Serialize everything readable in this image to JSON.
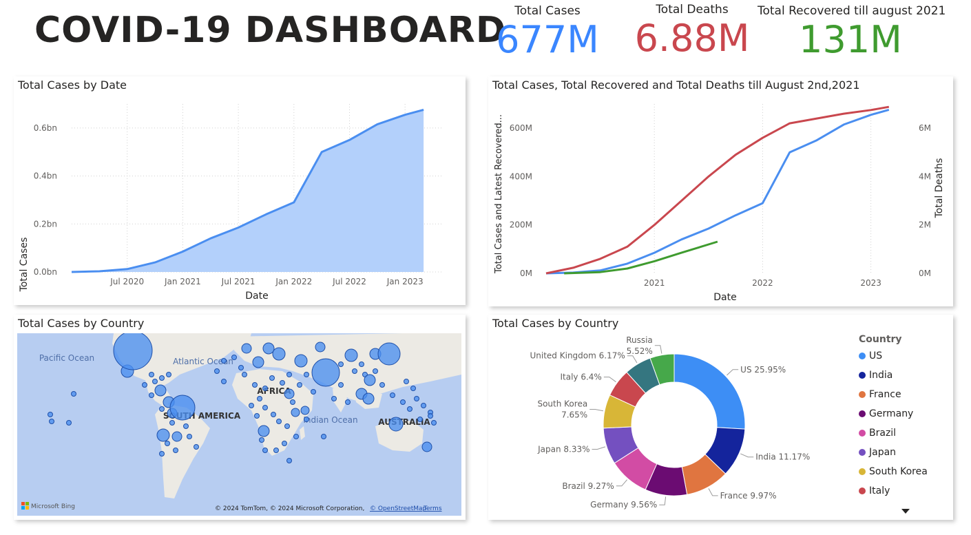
{
  "header": {
    "title": "COVID-19 DASHBOARD"
  },
  "kpis": [
    {
      "label": "Total Cases",
      "value": "677M",
      "color": "#3a86ff"
    },
    {
      "label": "Total Deaths",
      "value": "6.88M",
      "color": "#c9474e"
    },
    {
      "label": "Total Recovered till august 2021",
      "value": "131M",
      "color": "#3f9b2f"
    }
  ],
  "chart_data": [
    {
      "type": "area",
      "title": "Total Cases by Date",
      "xlabel": "Date",
      "ylabel": "Total Cases",
      "ytick_labels": [
        "0.0bn",
        "0.2bn",
        "0.4bn",
        "0.6bn"
      ],
      "xtick_labels": [
        "Jul 2020",
        "Jan 2021",
        "Jul 2021",
        "Jan 2022",
        "Jul 2022",
        "Jan 2023"
      ],
      "ylim": [
        0,
        0.7
      ],
      "color": "#4a8ef0",
      "series": [
        {
          "x": [
            "2020-01",
            "2020-04",
            "2020-07",
            "2020-10",
            "2021-01",
            "2021-04",
            "2021-07",
            "2021-10",
            "2022-01",
            "2022-04",
            "2022-07",
            "2022-10",
            "2023-01",
            "2023-03"
          ],
          "values": [
            0.0,
            0.003,
            0.012,
            0.04,
            0.085,
            0.14,
            0.185,
            0.24,
            0.29,
            0.5,
            0.55,
            0.615,
            0.655,
            0.676
          ]
        }
      ]
    },
    {
      "type": "line",
      "title": "Total Cases, Total Recovered and Total Deaths till August 2nd,2021",
      "xlabel": "Date",
      "ylabel": "Total Cases and Latest Recovered...",
      "ylabel_right": "Total Deaths",
      "ytick_labels": [
        "0M",
        "200M",
        "400M",
        "600M"
      ],
      "ytick_labels_right": [
        "0M",
        "2M",
        "4M",
        "6M"
      ],
      "xtick_labels": [
        "2021",
        "2022",
        "2023"
      ],
      "ylim": [
        0,
        700
      ],
      "ylim_right": [
        0,
        7
      ],
      "series": [
        {
          "name": "Total Cases",
          "color": "#4a8ef0",
          "x": [
            "2020-01",
            "2020-04",
            "2020-07",
            "2020-10",
            "2021-01",
            "2021-04",
            "2021-07",
            "2021-10",
            "2022-01",
            "2022-04",
            "2022-07",
            "2022-10",
            "2023-01",
            "2023-03"
          ],
          "values": [
            0,
            3,
            12,
            40,
            85,
            140,
            185,
            240,
            290,
            500,
            550,
            615,
            655,
            676
          ]
        },
        {
          "name": "Total Recovered",
          "color": "#3f9b2f",
          "x": [
            "2020-03",
            "2020-07",
            "2020-10",
            "2021-01",
            "2021-04",
            "2021-08"
          ],
          "values": [
            0,
            5,
            20,
            50,
            85,
            131
          ]
        },
        {
          "name": "Total Deaths",
          "axis": "right",
          "color": "#c9474e",
          "x": [
            "2020-01",
            "2020-04",
            "2020-07",
            "2020-10",
            "2021-01",
            "2021-04",
            "2021-07",
            "2021-10",
            "2022-01",
            "2022-04",
            "2022-07",
            "2022-10",
            "2023-01",
            "2023-03"
          ],
          "values": [
            0,
            0.23,
            0.6,
            1.1,
            2.0,
            3.0,
            4.0,
            4.9,
            5.6,
            6.2,
            6.4,
            6.6,
            6.75,
            6.88
          ]
        }
      ]
    },
    {
      "type": "pie",
      "title": "Total Cases by Country",
      "legend_title": "Country",
      "slices": [
        {
          "label": "US",
          "value": 25.95,
          "text": "US 25.95%",
          "color": "#3d8ef5"
        },
        {
          "label": "India",
          "value": 11.17,
          "text": "India 11.17%",
          "color": "#14249c"
        },
        {
          "label": "France",
          "value": 9.97,
          "text": "France 9.97%",
          "color": "#e07540"
        },
        {
          "label": "Germany",
          "value": 9.56,
          "text": "Germany 9.56%",
          "color": "#6b0c72"
        },
        {
          "label": "Brazil",
          "value": 9.27,
          "text": "Brazil 9.27%",
          "color": "#d24ca4"
        },
        {
          "label": "Japan",
          "value": 8.33,
          "text": "Japan 8.33%",
          "color": "#7450c0"
        },
        {
          "label": "South Korea",
          "value": 7.65,
          "text": "South Korea 7.65%",
          "color": "#d8b637"
        },
        {
          "label": "Italy",
          "value": 6.4,
          "text": "Italy 6.4%",
          "color": "#c9474e"
        },
        {
          "label": "United Kingdom",
          "value": 6.17,
          "text": "United Kingdom 6.17%",
          "color": "#357680"
        },
        {
          "label": "Russia",
          "value": 5.52,
          "text": "Russia 5.52%",
          "color": "#46a84a"
        }
      ],
      "legend_items": [
        "US",
        "India",
        "France",
        "Germany",
        "Brazil",
        "Japan",
        "South Korea",
        "Italy"
      ]
    }
  ],
  "map": {
    "title": "Total Cases by Country",
    "labels": {
      "pacific": "Pacific Ocean",
      "atlantic": "Atlantic Ocean",
      "indian": "Indian Ocean",
      "africa": "AFRICA",
      "south_america": "SOUTH AMERICA",
      "australia": "AUSTRALIA"
    },
    "copyright": "© 2024 TomTom, © 2024 Microsoft Corporation,",
    "osm_link": "© OpenStreetMap",
    "terms_link": "Terms",
    "bing_logo": "Microsoft Bing",
    "bubble_color": "#4a8ef0"
  }
}
